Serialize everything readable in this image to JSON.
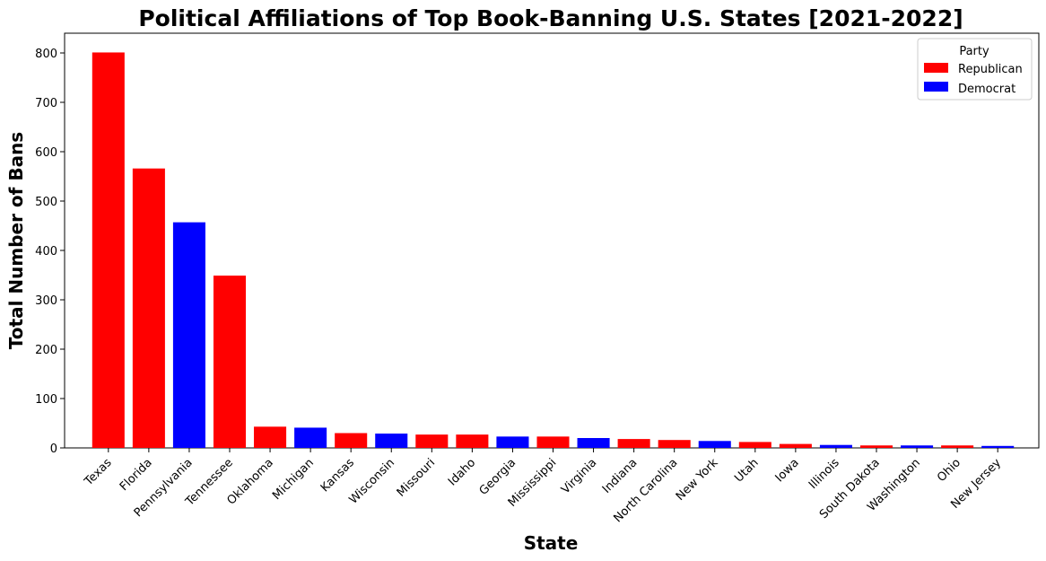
{
  "chart_data": {
    "type": "bar",
    "title": "Political Affiliations of Top Book-Banning U.S. States [2021-2022]",
    "xlabel": "State",
    "ylabel": "Total Number of Bans",
    "ylim": [
      0,
      840
    ],
    "yticks": [
      0,
      100,
      200,
      300,
      400,
      500,
      600,
      700,
      800
    ],
    "grid": false,
    "legend": {
      "title": "Party",
      "placement": "top-right",
      "entries": [
        {
          "label": "Republican",
          "color": "#ff0000"
        },
        {
          "label": "Democrat",
          "color": "#0000ff"
        }
      ]
    },
    "categories": [
      "Texas",
      "Florida",
      "Pennsylvania",
      "Tennessee",
      "Oklahoma",
      "Michigan",
      "Kansas",
      "Wisconsin",
      "Missouri",
      "Idaho",
      "Georgia",
      "Mississippi",
      "Virginia",
      "Indiana",
      "North Carolina",
      "New York",
      "Utah",
      "Iowa",
      "Illinois",
      "South Dakota",
      "Washington",
      "Ohio",
      "New Jersey"
    ],
    "values": [
      801,
      566,
      457,
      349,
      43,
      41,
      30,
      29,
      27,
      27,
      23,
      23,
      20,
      18,
      16,
      14,
      12,
      8,
      6,
      5,
      5,
      5,
      4
    ],
    "party": [
      "Republican",
      "Republican",
      "Democrat",
      "Republican",
      "Republican",
      "Democrat",
      "Republican",
      "Democrat",
      "Republican",
      "Republican",
      "Democrat",
      "Republican",
      "Democrat",
      "Republican",
      "Republican",
      "Democrat",
      "Republican",
      "Republican",
      "Democrat",
      "Republican",
      "Democrat",
      "Republican",
      "Democrat"
    ]
  }
}
